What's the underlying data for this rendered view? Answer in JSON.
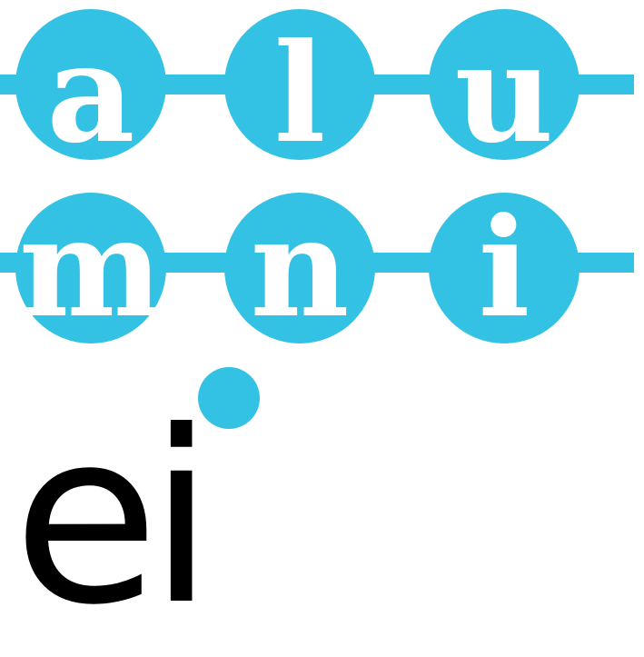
{
  "logo": {
    "row1": [
      "a",
      "l",
      "u"
    ],
    "row2": [
      "m",
      "n",
      "i"
    ],
    "wordmark": "ei",
    "accent_color": "#33c2e3",
    "text_color": "#000000"
  }
}
